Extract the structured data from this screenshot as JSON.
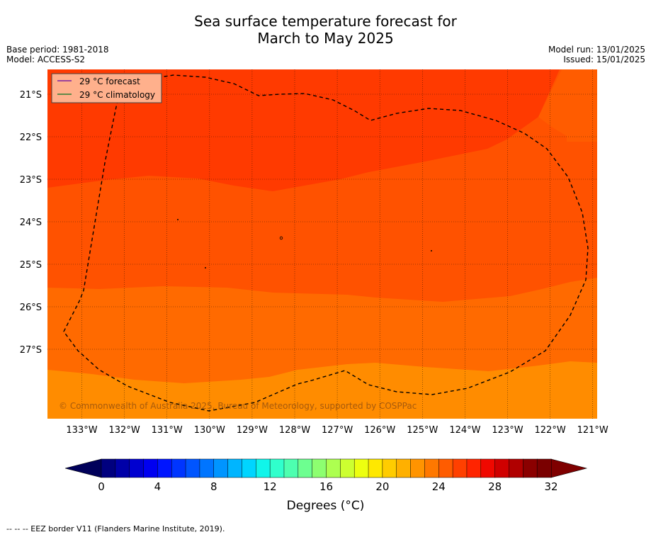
{
  "title_line1": "Sea surface temperature forecast for",
  "title_line2": "March to May 2025",
  "base_period": "Base period: 1981-2018",
  "model": "Model: ACCESS-S2",
  "model_run": "Model run: 13/01/2025",
  "issued": "Issued: 15/01/2025",
  "legend": [
    {
      "label": "29 °C  forecast",
      "color": "#7b1fa2"
    },
    {
      "label": "29 °C  climatology",
      "color": "#2e7d32"
    }
  ],
  "copyright": "© Commonwealth of Australia 2025, Bureau of Meteorology, supported by COSPPac",
  "lat_labels": [
    "21°S",
    "22°S",
    "23°S",
    "24°S",
    "25°S",
    "26°S",
    "27°S"
  ],
  "lon_labels": [
    "133°W",
    "132°W",
    "131°W",
    "130°W",
    "129°W",
    "128°W",
    "127°W",
    "126°W",
    "125°W",
    "124°W",
    "123°W",
    "122°W",
    "121°W"
  ],
  "colorbar": {
    "ticks": [
      "0",
      "4",
      "8",
      "12",
      "16",
      "20",
      "24",
      "28",
      "32"
    ],
    "min": 0,
    "max": 32,
    "step": 1,
    "label": "Degrees (°C)",
    "colors": [
      "#00007f",
      "#0000a8",
      "#0000d0",
      "#0000f0",
      "#0015ff",
      "#0035ff",
      "#0055ff",
      "#0075ff",
      "#0095ff",
      "#00b5ff",
      "#00d5ff",
      "#10f5ea",
      "#30ffcc",
      "#4dffb0",
      "#6dff90",
      "#8dff70",
      "#adff50",
      "#cdff30",
      "#edff10",
      "#ffe800",
      "#ffcc00",
      "#ffb000",
      "#ff9400",
      "#ff7800",
      "#ff5c00",
      "#ff4000",
      "#ff2400",
      "#f00800",
      "#d00000",
      "#b00000",
      "#8b0000",
      "#7a0000"
    ],
    "under_color": "#00005a",
    "over_color": "#7f0000"
  },
  "fill_colors": {
    "band_top_right": "#ff5c00",
    "band_28": "#ff3a00",
    "band_27": "#ff5200",
    "band_26": "#ff6a00",
    "band_25": "#ff8c00",
    "legend_bg": "#ffb08c"
  },
  "footnote": "--  --  -- EEZ border V11 (Flanders Marine Institute, 2019)."
}
